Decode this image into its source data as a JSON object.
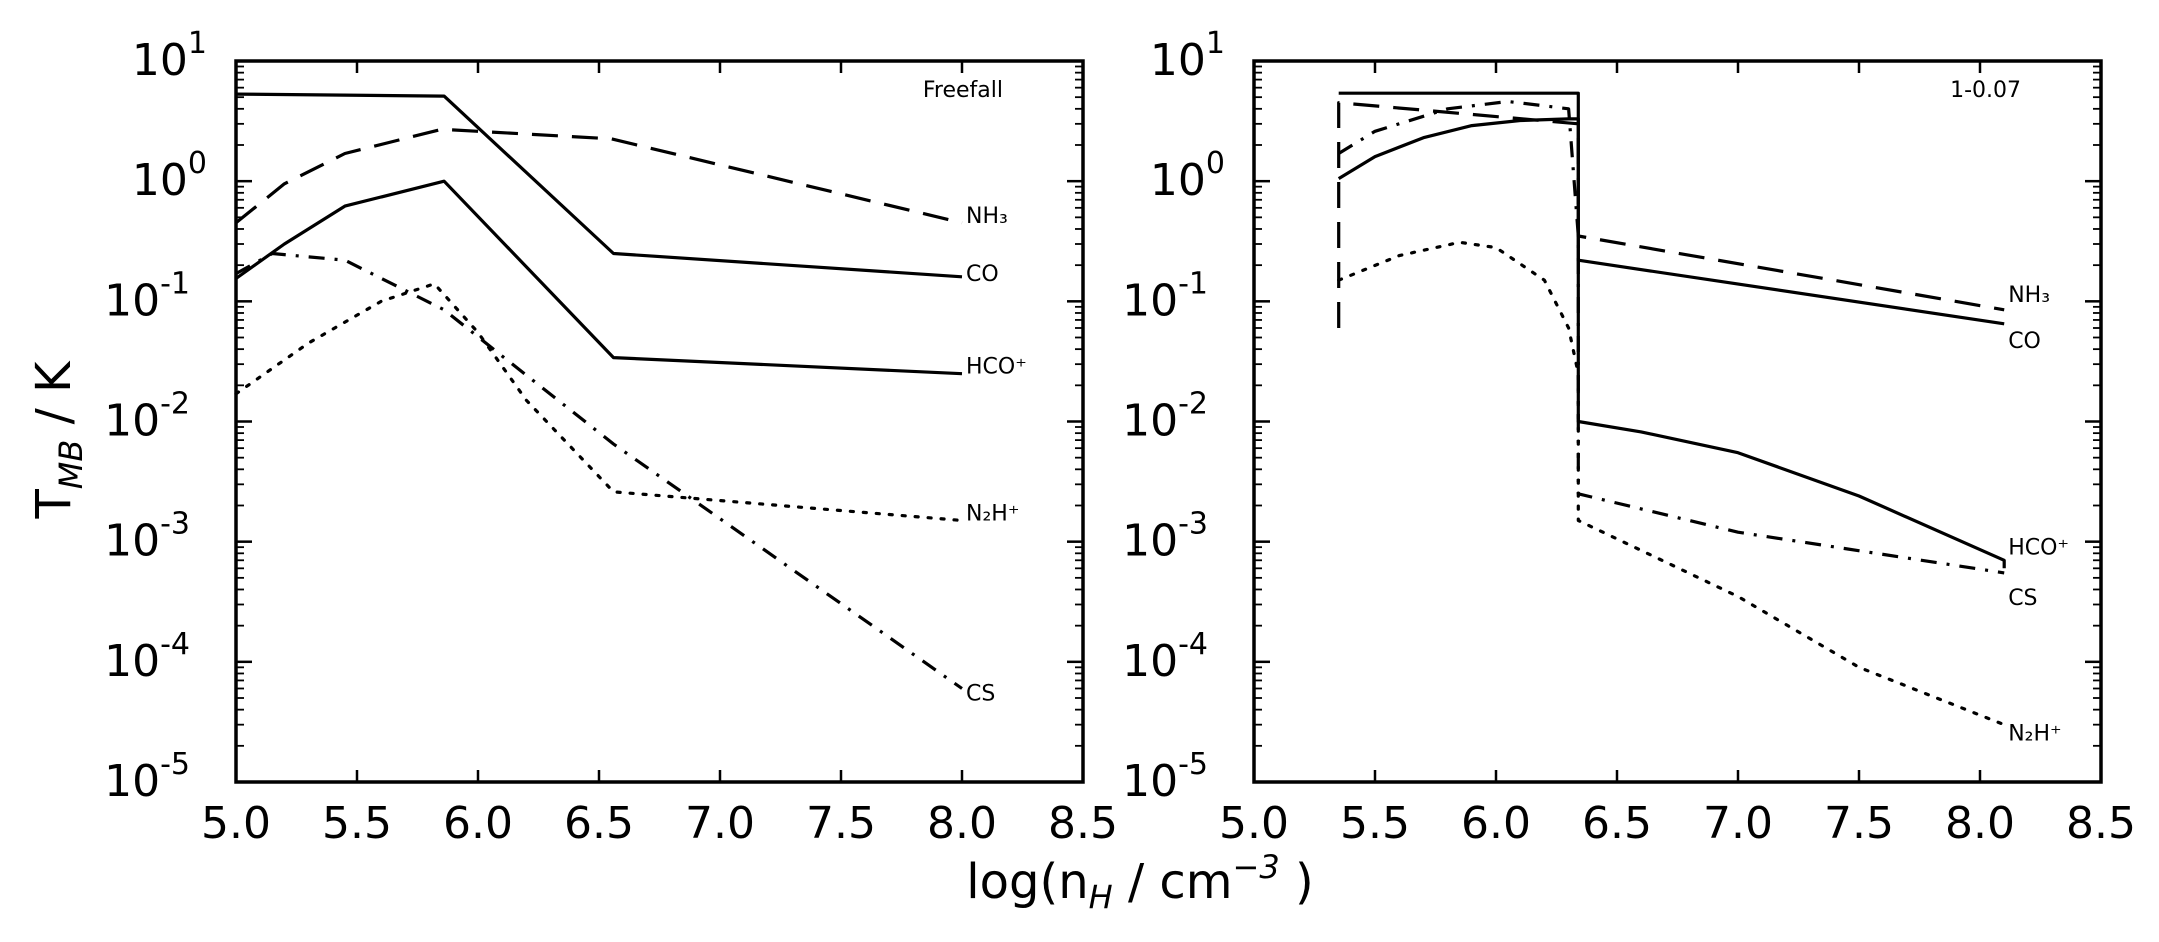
{
  "chart_data": [
    {
      "type": "line",
      "title": "Freefall",
      "xlim": [
        5.0,
        8.5
      ],
      "ylim_log10": [
        -5,
        1
      ],
      "xticks": [
        "5.0",
        "5.5",
        "6.0",
        "6.5",
        "7.0",
        "7.5",
        "8.0",
        "8.5"
      ],
      "yticks": [
        {
          "base": "10",
          "exp": "1"
        },
        {
          "base": "10",
          "exp": "0"
        },
        {
          "base": "10",
          "exp": "-1"
        },
        {
          "base": "10",
          "exp": "-2"
        },
        {
          "base": "10",
          "exp": "-3"
        },
        {
          "base": "10",
          "exp": "-4"
        },
        {
          "base": "10",
          "exp": "-5"
        }
      ],
      "series": [
        {
          "name": "CO",
          "label": "CO",
          "style": "solid",
          "x": [
            5.0,
            5.86,
            6.56,
            8.0
          ],
          "y": [
            5.3,
            5.1,
            0.25,
            0.16
          ]
        },
        {
          "name": "NH3",
          "label": "NH₃",
          "style": "dashed",
          "x": [
            5.0,
            5.2,
            5.45,
            5.85,
            6.0,
            6.55,
            8.0
          ],
          "y": [
            0.45,
            0.95,
            1.7,
            2.7,
            2.6,
            2.25,
            0.45
          ]
        },
        {
          "name": "HCO+",
          "label": "HCO⁺",
          "style": "solid",
          "x": [
            5.0,
            5.2,
            5.45,
            5.86,
            6.56,
            8.0
          ],
          "y": [
            0.155,
            0.3,
            0.62,
            1.0,
            0.034,
            0.025
          ]
        },
        {
          "name": "CS",
          "label": "CS",
          "style": "dashdot",
          "x": [
            5.0,
            5.15,
            5.45,
            5.86,
            6.1,
            6.56,
            8.0
          ],
          "y": [
            0.17,
            0.25,
            0.22,
            0.085,
            0.035,
            0.0065,
            6e-05
          ]
        },
        {
          "name": "N2H+",
          "label": "N₂H⁺",
          "style": "dotted",
          "x": [
            5.0,
            5.3,
            5.6,
            5.82,
            6.0,
            6.2,
            6.56,
            8.0
          ],
          "y": [
            0.017,
            0.045,
            0.1,
            0.14,
            0.055,
            0.015,
            0.0026,
            0.0015
          ]
        }
      ]
    },
    {
      "type": "line",
      "title": "1-0.07",
      "xlim": [
        5.0,
        8.5
      ],
      "ylim_log10": [
        -5,
        1
      ],
      "xticks": [
        "5.0",
        "5.5",
        "6.0",
        "6.5",
        "7.0",
        "7.5",
        "8.0",
        "8.5"
      ],
      "yticks": [
        {
          "base": "10",
          "exp": "1"
        },
        {
          "base": "10",
          "exp": "0"
        },
        {
          "base": "10",
          "exp": "-1"
        },
        {
          "base": "10",
          "exp": "-2"
        },
        {
          "base": "10",
          "exp": "-3"
        },
        {
          "base": "10",
          "exp": "-4"
        },
        {
          "base": "10",
          "exp": "-5"
        }
      ],
      "series": [
        {
          "name": "NH3",
          "label": "NH₃",
          "style": "dashed",
          "x": [
            5.35,
            5.35,
            5.35,
            6.34,
            6.34,
            8.1
          ],
          "y": [
            0.06,
            1.0,
            4.5,
            3.0,
            0.35,
            0.085
          ]
        },
        {
          "name": "CO",
          "label": "CO",
          "style": "solid",
          "x": [
            5.35,
            6.34,
            6.34,
            8.1
          ],
          "y": [
            5.4,
            5.4,
            0.22,
            0.065
          ]
        },
        {
          "name": "HCO+",
          "label": "HCO⁺",
          "style": "solid",
          "x": [
            5.35,
            5.5,
            5.7,
            5.9,
            6.1,
            6.3,
            6.34,
            6.34,
            6.6,
            7.0,
            7.5,
            8.1,
            8.1
          ],
          "y": [
            1.05,
            1.6,
            2.3,
            2.9,
            3.2,
            3.3,
            3.3,
            0.01,
            0.0082,
            0.0055,
            0.0024,
            0.0007,
            0.0006
          ]
        },
        {
          "name": "CS",
          "label": "CS",
          "style": "dashdot",
          "x": [
            5.35,
            5.5,
            5.8,
            6.05,
            6.3,
            6.34,
            6.34,
            7.0,
            8.1
          ],
          "y": [
            1.7,
            2.6,
            4.0,
            4.6,
            4.0,
            0.35,
            0.0025,
            0.0012,
            0.00055
          ]
        },
        {
          "name": "N2H+",
          "label": "N₂H⁺",
          "style": "dotted",
          "x": [
            5.35,
            5.6,
            5.85,
            6.0,
            6.2,
            6.3,
            6.34,
            6.34,
            7.0,
            7.5,
            8.1
          ],
          "y": [
            0.15,
            0.24,
            0.31,
            0.28,
            0.15,
            0.06,
            0.025,
            0.0015,
            0.00035,
            9e-05,
            3e-05
          ]
        }
      ]
    }
  ],
  "axis_titles": {
    "y_main": "T",
    "y_sub": "MB",
    "y_suffix": " / K",
    "x_prefix": "log(n",
    "x_sub": "H",
    "x_mid": " / cm",
    "x_sup": "−3",
    "x_suffix": " )"
  }
}
